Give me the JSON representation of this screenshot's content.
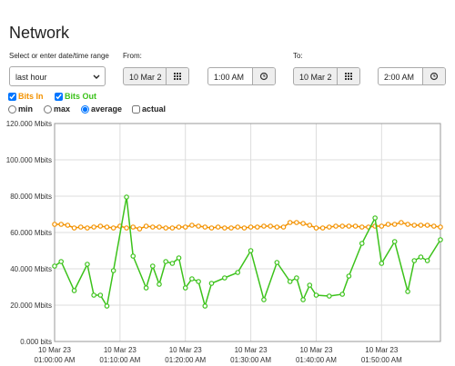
{
  "header": {
    "title": "Network"
  },
  "form": {
    "range_label": "Select or enter date/time range",
    "range_select": "last hour",
    "from_label": "From:",
    "from_date": "10 Mar 2",
    "from_time": "1:00 AM",
    "to_label": "To:",
    "to_date": "10 Mar 2",
    "to_time": "2:00 AM"
  },
  "options": {
    "min": "min",
    "max": "max",
    "average": "average",
    "actual": "actual"
  },
  "chart_data": {
    "type": "line",
    "series": [
      {
        "name": "Bits In",
        "color": "#f39200",
        "x": [
          0,
          1,
          2,
          3,
          4,
          5,
          6,
          7,
          8,
          9,
          10,
          11,
          12,
          13,
          14,
          15,
          16,
          17,
          18,
          19,
          20,
          21,
          22,
          23,
          24,
          25,
          26,
          27,
          28,
          29,
          30,
          31,
          32,
          33,
          34,
          35,
          36,
          37,
          38,
          39,
          40,
          41,
          42,
          43,
          44,
          45,
          46,
          47,
          48,
          49,
          50,
          51,
          52,
          53,
          54,
          55,
          56,
          57,
          58,
          59
        ],
        "values": [
          64.5,
          64.5,
          64,
          62.5,
          63,
          62.5,
          63,
          63.5,
          63,
          62.5,
          63.5,
          62.5,
          63,
          62,
          63.5,
          63,
          63,
          62.5,
          62.5,
          63,
          63,
          64,
          63.5,
          63,
          62.5,
          63,
          62.5,
          62.5,
          63,
          62.5,
          63,
          63,
          63.5,
          63.5,
          63,
          63,
          65.5,
          65.5,
          65,
          64,
          62.5,
          62.5,
          63,
          63.5,
          63.5,
          63.5,
          63.5,
          63,
          63,
          63.5,
          63.5,
          64.5,
          64.5,
          65.5,
          64.5,
          64,
          64,
          64,
          63.5,
          63
        ]
      },
      {
        "name": "Bits Out",
        "color": "#3cc21b",
        "x": [
          0,
          1,
          3,
          5,
          6,
          7,
          8,
          9,
          11,
          12,
          14,
          15,
          16,
          17,
          18,
          19,
          20,
          21,
          22,
          23,
          24,
          26,
          28,
          30,
          32,
          34,
          36,
          37,
          38,
          39,
          40,
          42,
          44,
          45,
          47,
          49,
          50,
          52,
          54,
          55,
          56,
          57,
          59
        ],
        "values": [
          41.5,
          44,
          28,
          42.5,
          25.5,
          25.5,
          19.5,
          39,
          79.5,
          47,
          29.5,
          41.5,
          31.5,
          44,
          43,
          46,
          29.5,
          34.5,
          33,
          19.5,
          32,
          35,
          38,
          50,
          23,
          43.5,
          33,
          35,
          23,
          31,
          25.5,
          25,
          26,
          36,
          54,
          68,
          43,
          55,
          27.5,
          44.5,
          46.5,
          44.5,
          56
        ]
      }
    ],
    "xlim": [
      0,
      59
    ],
    "xticks": [
      {
        "value": 0,
        "label": [
          "10 Mar 23",
          "01:00:00 AM"
        ]
      },
      {
        "value": 10,
        "label": [
          "10 Mar 23",
          "01:10:00 AM"
        ]
      },
      {
        "value": 20,
        "label": [
          "10 Mar 23",
          "01:20:00 AM"
        ]
      },
      {
        "value": 30,
        "label": [
          "10 Mar 23",
          "01:30:00 AM"
        ]
      },
      {
        "value": 40,
        "label": [
          "10 Mar 23",
          "01:40:00 AM"
        ]
      },
      {
        "value": 50,
        "label": [
          "10 Mar 23",
          "01:50:00 AM"
        ]
      }
    ],
    "ylim": [
      0,
      120
    ],
    "yticks": [
      {
        "value": 0,
        "label": "0.000 bits"
      },
      {
        "value": 20,
        "label": "20.000 Mbits"
      },
      {
        "value": 40,
        "label": "40.000 Mbits"
      },
      {
        "value": 60,
        "label": "60.000 Mbits"
      },
      {
        "value": 80,
        "label": "80.000 Mbits"
      },
      {
        "value": 100,
        "label": "100.000 Mbits"
      },
      {
        "value": 120,
        "label": "120.000 Mbits"
      }
    ],
    "grid": true
  }
}
